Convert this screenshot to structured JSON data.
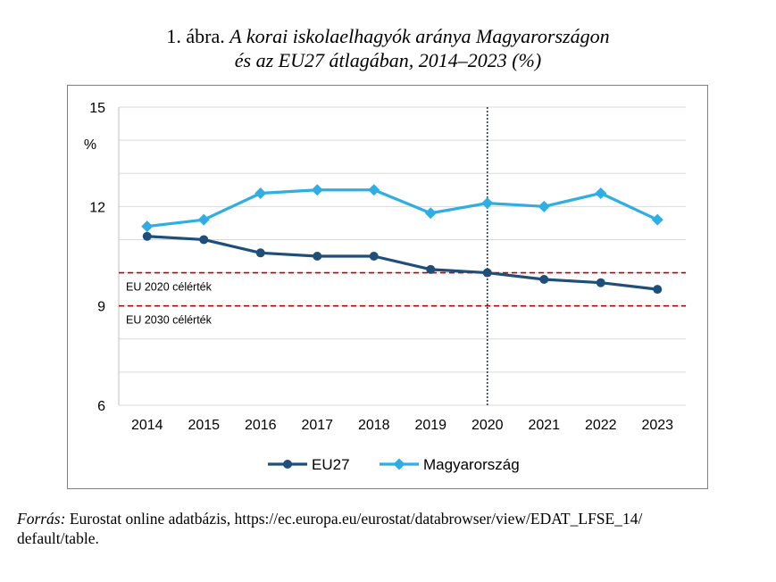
{
  "title": {
    "number": "1. ábra.",
    "line1": "A korai iskolaelhagyók aránya Magyarországon",
    "line2": "és az EU27 átlagában, 2014–2023 (%)"
  },
  "source": {
    "label": "Forrás:",
    "text": "Eurostat online adatbázis, https://ec.europa.eu/eurostat/databrowser/view/EDAT_LFSE_14/",
    "text2": "default/table."
  },
  "chart_data": {
    "type": "line",
    "categories": [
      "2014",
      "2015",
      "2016",
      "2017",
      "2018",
      "2019",
      "2020",
      "2021",
      "2022",
      "2023"
    ],
    "ylabel": "%",
    "ylim": [
      6,
      15
    ],
    "yticks": [
      "15",
      "12",
      "9",
      "6"
    ],
    "grid": true,
    "legend_position": "bottom",
    "series": [
      {
        "name": "EU27",
        "color": "#1f4e79",
        "marker": "circle",
        "values": [
          11.1,
          11.0,
          10.6,
          10.5,
          10.5,
          10.1,
          10.0,
          9.8,
          9.7,
          9.5
        ]
      },
      {
        "name": "Magyarország",
        "color": "#2eaee4",
        "marker": "diamond",
        "values": [
          11.4,
          11.6,
          12.4,
          12.5,
          12.5,
          11.8,
          12.1,
          12.0,
          12.4,
          11.6
        ]
      }
    ],
    "reference_lines": [
      {
        "label": "EU 2020 célérték",
        "value": 10,
        "color": "#c00000",
        "style": "dashed"
      },
      {
        "label": "EU 2030 célérték",
        "value": 9,
        "color": "#c00000",
        "style": "dashed"
      }
    ],
    "vertical_marker": {
      "category": "2020",
      "color": "#1f3864",
      "style": "dotted"
    }
  }
}
